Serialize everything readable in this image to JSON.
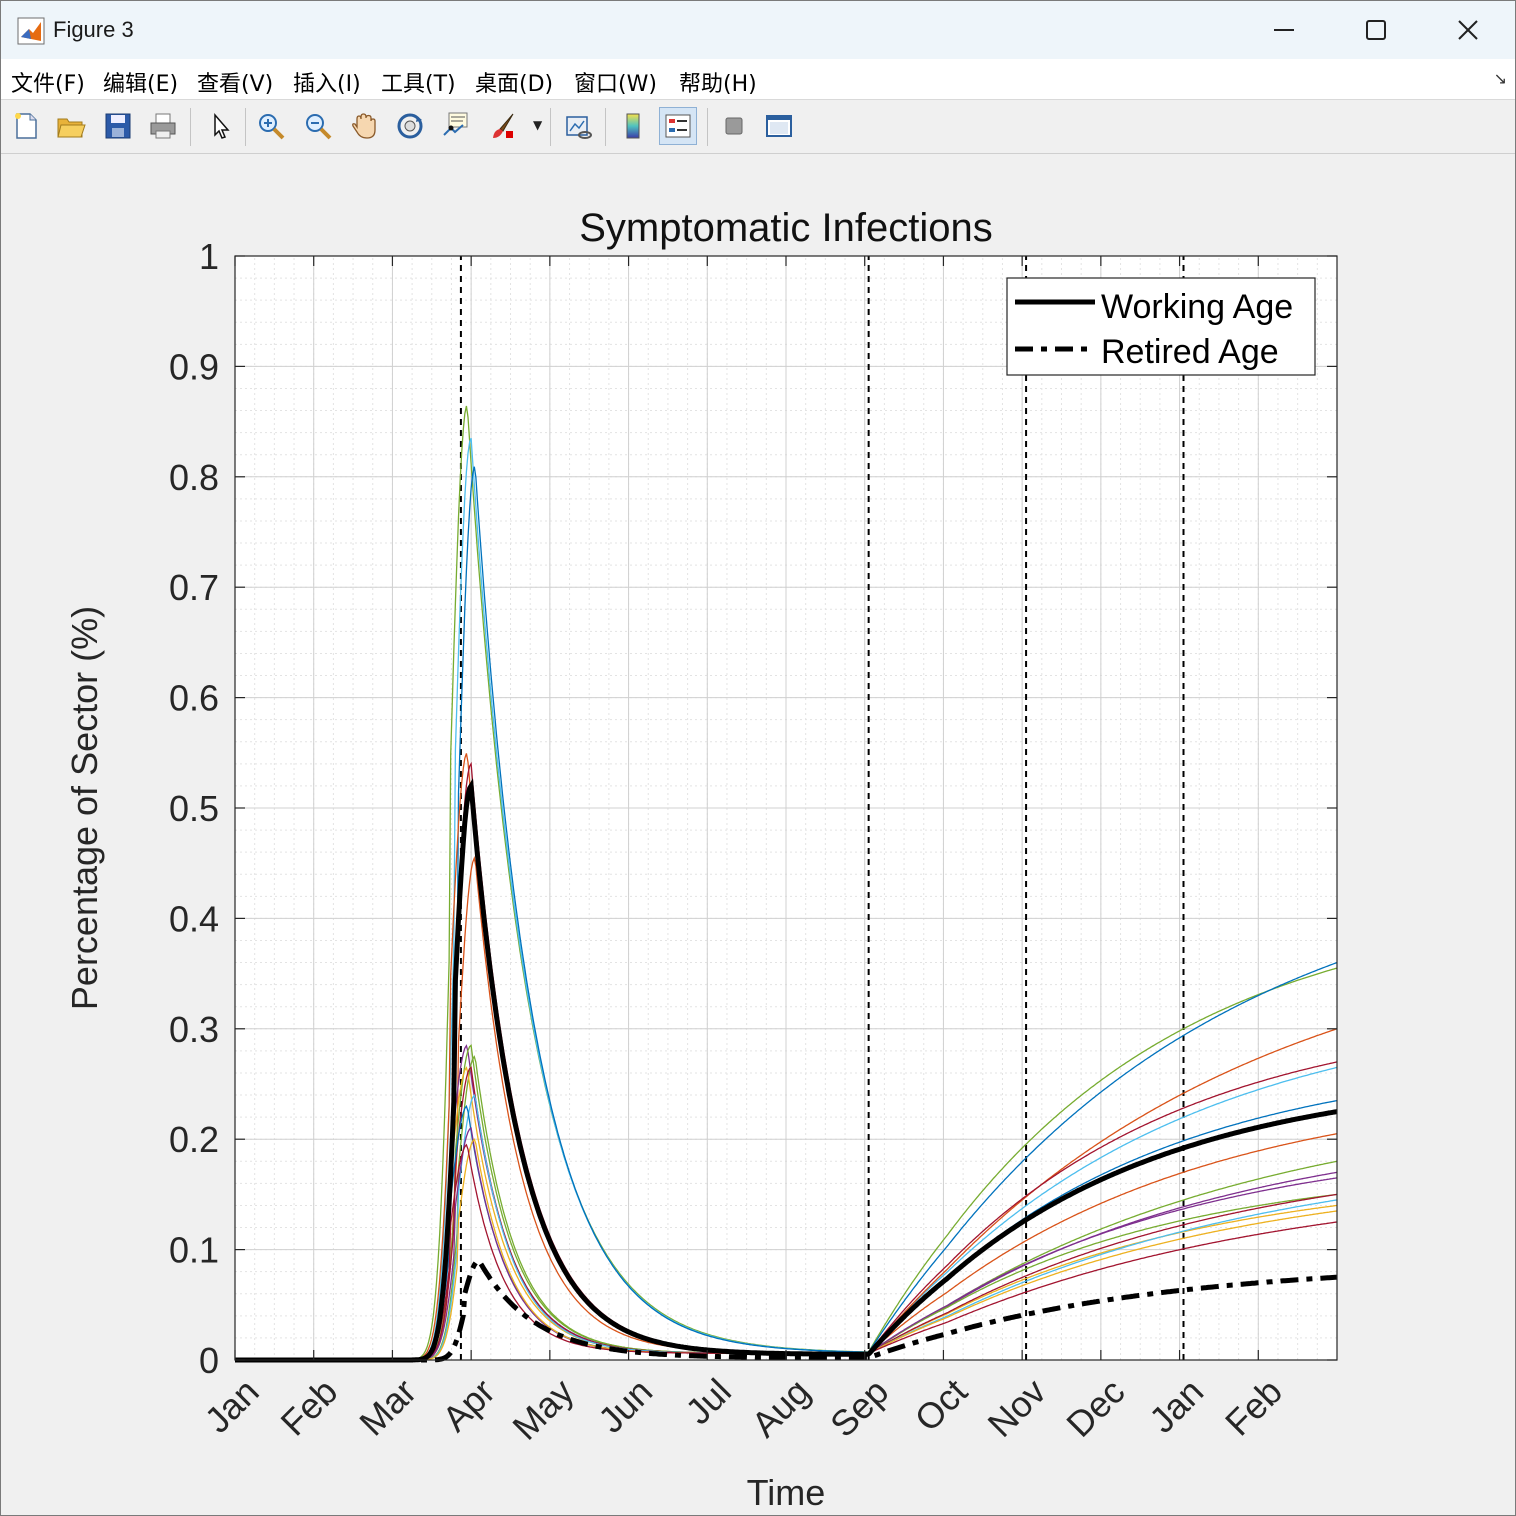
{
  "window": {
    "title": "Figure 3"
  },
  "menu": [
    "文件(F)",
    "编辑(E)",
    "查看(V)",
    "插入(I)",
    "工具(T)",
    "桌面(D)",
    "窗口(W)",
    "帮助(H)"
  ],
  "toolbar": {
    "icons": [
      "new-figure-icon",
      "open-file-icon",
      "save-icon",
      "print-icon",
      "pointer-icon",
      "zoom-in-icon",
      "zoom-out-icon",
      "pan-hand-icon",
      "rotate-3d-icon",
      "data-cursor-icon",
      "brush-icon",
      "link-plot-icon",
      "colorbar-icon",
      "legend-icon",
      "hide-plot-tools-icon",
      "show-plot-tools-icon"
    ]
  },
  "chart_data": {
    "type": "line",
    "title": "Symptomatic Infections",
    "xlabel": "Time",
    "ylabel": "Percentage of Sector (%)",
    "x_unit": "month index (0 = start of Jan)",
    "xlim": [
      0,
      14
    ],
    "ylim": [
      0,
      1
    ],
    "yticks": [
      "0",
      "0.1",
      "0.2",
      "0.3",
      "0.4",
      "0.5",
      "0.6",
      "0.7",
      "0.8",
      "0.9",
      "1"
    ],
    "xticks": [
      "Jan",
      "Feb",
      "Mar",
      "Apr",
      "May",
      "Jun",
      "Jul",
      "Aug",
      "Sep",
      "Oct",
      "Nov",
      "Dec",
      "Jan",
      "Feb"
    ],
    "grid": "on (major and minor)",
    "legend": {
      "position": "top-right",
      "entries": [
        "Working Age",
        "Retired Age"
      ]
    },
    "vertical_markers": [
      2.87,
      8.05,
      10.05,
      12.05
    ],
    "series": [
      {
        "name": "Working Age",
        "style": "solid-thick-black",
        "peak_x": 3.0,
        "peak": 0.52,
        "trough": 0.005,
        "end": 0.225,
        "values_at": [
          [
            3.0,
            0.52
          ],
          [
            3.5,
            0.33
          ],
          [
            4.0,
            0.21
          ],
          [
            5.0,
            0.08
          ],
          [
            6.0,
            0.03
          ],
          [
            7.0,
            0.012
          ],
          [
            8.0,
            0.005
          ],
          [
            9.0,
            0.02
          ],
          [
            10.0,
            0.065
          ],
          [
            11.0,
            0.13
          ],
          [
            12.0,
            0.18
          ],
          [
            13.0,
            0.215
          ],
          [
            14.0,
            0.225
          ]
        ]
      },
      {
        "name": "Retired Age",
        "style": "dashed-thick-black",
        "peak_x": 3.1,
        "peak": 0.09,
        "trough": 0.002,
        "end": 0.075,
        "values_at": [
          [
            3.1,
            0.09
          ],
          [
            4.0,
            0.04
          ],
          [
            5.0,
            0.015
          ],
          [
            6.0,
            0.006
          ],
          [
            8.0,
            0.002
          ],
          [
            10.0,
            0.02
          ],
          [
            11.0,
            0.04
          ],
          [
            12.0,
            0.058
          ],
          [
            13.0,
            0.07
          ],
          [
            14.0,
            0.075
          ]
        ]
      }
    ],
    "sector_lines": [
      {
        "color": "#77ac30",
        "peak": 0.865,
        "end": 0.355
      },
      {
        "color": "#4dbeee",
        "peak": 0.835,
        "end": 0.265
      },
      {
        "color": "#0072bd",
        "peak": 0.81,
        "end": 0.36
      },
      {
        "color": "#d95319",
        "peak": 0.55,
        "end": 0.3
      },
      {
        "color": "#a2142f",
        "peak": 0.54,
        "end": 0.27
      },
      {
        "color": "#d95319",
        "peak": 0.455,
        "end": 0.205
      },
      {
        "color": "#7e2f8e",
        "peak": 0.285,
        "end": 0.17
      },
      {
        "color": "#77ac30",
        "peak": 0.285,
        "end": 0.18
      },
      {
        "color": "#77ac30",
        "peak": 0.275,
        "end": 0.15
      },
      {
        "color": "#edb120",
        "peak": 0.265,
        "end": 0.14
      },
      {
        "color": "#a2142f",
        "peak": 0.265,
        "end": 0.15
      },
      {
        "color": "#4dbeee",
        "peak": 0.24,
        "end": 0.145
      },
      {
        "color": "#0072bd",
        "peak": 0.23,
        "end": 0.235
      },
      {
        "color": "#7e2f8e",
        "peak": 0.21,
        "end": 0.165
      },
      {
        "color": "#edb120",
        "peak": 0.2,
        "end": 0.135
      },
      {
        "color": "#a2142f",
        "peak": 0.195,
        "end": 0.125
      }
    ]
  }
}
